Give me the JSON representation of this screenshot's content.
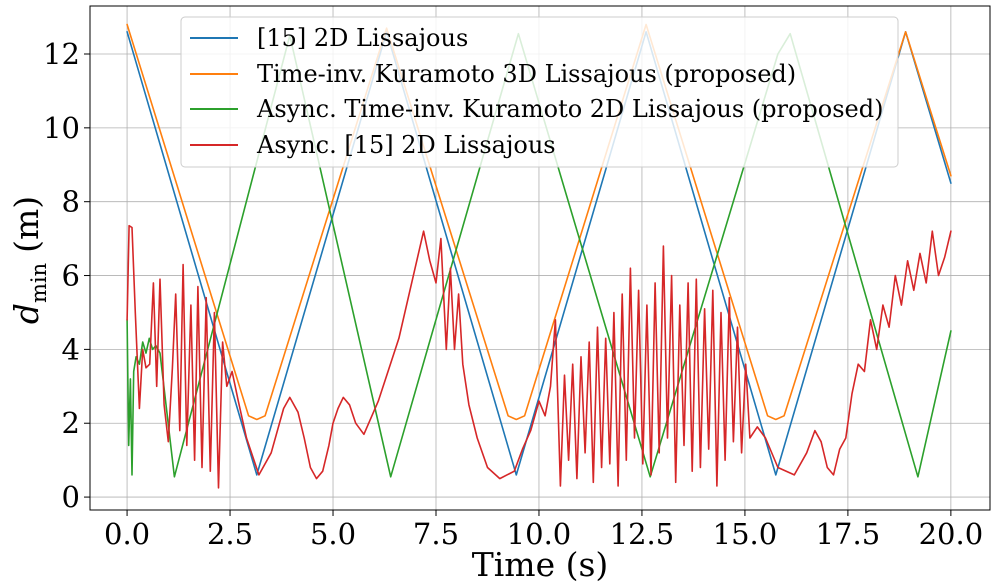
{
  "chart_data": {
    "type": "line",
    "title": "",
    "xlabel": "Time (s)",
    "ylabel_main": "d",
    "ylabel_sub": "min",
    "ylabel_unit": "(m)",
    "xlim": [
      -0.9,
      20.95
    ],
    "ylim": [
      -0.35,
      13.3
    ],
    "xticks": [
      0.0,
      2.5,
      5.0,
      7.5,
      10.0,
      12.5,
      15.0,
      17.5,
      20.0
    ],
    "xtick_labels": [
      "0.0",
      "2.5",
      "5.0",
      "7.5",
      "10.0",
      "12.5",
      "15.0",
      "17.5",
      "20.0"
    ],
    "yticks": [
      0,
      2,
      4,
      6,
      8,
      10,
      12
    ],
    "ytick_labels": [
      "0",
      "2",
      "4",
      "6",
      "8",
      "10",
      "12"
    ],
    "grid": true,
    "legend_position": "top-center",
    "series": [
      {
        "name": "[15] 2D Lissajous",
        "color": "#1f77b4",
        "x": [
          0.0,
          3.15,
          6.3,
          9.45,
          12.6,
          15.75,
          18.9,
          20.0
        ],
        "y": [
          12.6,
          0.6,
          12.6,
          0.6,
          12.6,
          0.6,
          12.6,
          8.5
        ]
      },
      {
        "name": "Time-inv. Kuramoto 3D Lissajous (proposed)",
        "color": "#ff7f0e",
        "x": [
          0.0,
          2.95,
          3.15,
          3.35,
          6.3,
          9.25,
          9.45,
          9.65,
          12.6,
          15.55,
          15.75,
          15.95,
          18.9,
          20.0
        ],
        "y": [
          12.8,
          2.2,
          2.1,
          2.2,
          12.7,
          2.2,
          2.1,
          2.2,
          12.8,
          2.2,
          2.1,
          2.2,
          12.6,
          8.7
        ]
      },
      {
        "name": "Async. Time-inv. Kuramoto 2D Lissajous (proposed)",
        "color": "#2ca02c",
        "x": [
          0.0,
          0.04,
          0.08,
          0.12,
          0.16,
          0.22,
          0.3,
          0.38,
          0.46,
          0.54,
          0.62,
          0.7,
          0.8,
          1.15,
          3.95,
          6.4,
          9.5,
          12.7,
          15.8,
          16.1,
          19.2,
          20.0
        ],
        "y": [
          4.8,
          1.4,
          3.2,
          0.6,
          3.4,
          3.8,
          3.6,
          4.2,
          3.9,
          4.3,
          4.0,
          4.1,
          3.9,
          0.55,
          12.5,
          0.55,
          12.55,
          0.55,
          12.0,
          12.55,
          0.55,
          4.5
        ]
      },
      {
        "name": "Async. [15] 2D Lissajous",
        "color": "#d62728",
        "x": [
          0.0,
          0.05,
          0.12,
          0.2,
          0.3,
          0.38,
          0.46,
          0.55,
          0.64,
          0.72,
          0.8,
          0.9,
          1.0,
          1.1,
          1.18,
          1.28,
          1.36,
          1.45,
          1.55,
          1.64,
          1.72,
          1.82,
          1.92,
          2.02,
          2.12,
          2.22,
          2.32,
          2.42,
          2.55,
          2.7,
          2.9,
          3.2,
          3.5,
          3.8,
          3.95,
          4.15,
          4.3,
          4.45,
          4.6,
          4.75,
          4.9,
          5.0,
          5.12,
          5.25,
          5.4,
          5.55,
          5.75,
          6.1,
          6.6,
          7.2,
          7.35,
          7.5,
          7.62,
          7.75,
          7.85,
          7.95,
          8.05,
          8.15,
          8.3,
          8.5,
          8.75,
          9.05,
          9.4,
          9.6,
          9.8,
          10.0,
          10.15,
          10.28,
          10.4,
          10.52,
          10.62,
          10.72,
          10.82,
          10.92,
          11.02,
          11.12,
          11.22,
          11.32,
          11.42,
          11.52,
          11.62,
          11.72,
          11.82,
          11.92,
          12.02,
          12.12,
          12.22,
          12.32,
          12.42,
          12.52,
          12.62,
          12.72,
          12.82,
          12.92,
          13.02,
          13.12,
          13.22,
          13.32,
          13.42,
          13.52,
          13.62,
          13.72,
          13.82,
          13.92,
          14.02,
          14.12,
          14.22,
          14.32,
          14.42,
          14.52,
          14.62,
          14.72,
          14.82,
          14.92,
          15.02,
          15.12,
          15.3,
          15.5,
          15.8,
          16.2,
          16.5,
          16.7,
          16.85,
          17.0,
          17.15,
          17.3,
          17.45,
          17.6,
          17.75,
          17.9,
          18.05,
          18.2,
          18.35,
          18.5,
          18.65,
          18.8,
          18.95,
          19.1,
          19.25,
          19.4,
          19.55,
          19.7,
          19.85,
          20.0
        ],
        "y": [
          4.8,
          7.35,
          7.3,
          5.0,
          2.4,
          4.0,
          3.5,
          3.6,
          5.8,
          3.0,
          5.9,
          2.5,
          1.5,
          3.5,
          5.5,
          1.8,
          6.3,
          1.4,
          5.2,
          1.0,
          5.7,
          0.8,
          5.4,
          0.7,
          5.0,
          0.25,
          4.2,
          3.0,
          3.4,
          2.6,
          1.6,
          0.6,
          1.2,
          2.4,
          2.7,
          2.3,
          1.6,
          0.8,
          0.5,
          0.7,
          1.4,
          2.0,
          2.4,
          2.7,
          2.5,
          2.0,
          1.7,
          2.6,
          4.3,
          7.2,
          6.4,
          5.8,
          7.0,
          4.0,
          6.2,
          4.0,
          5.5,
          3.6,
          2.5,
          1.6,
          0.8,
          0.5,
          0.7,
          1.3,
          1.8,
          2.6,
          2.2,
          3.0,
          4.8,
          0.3,
          3.3,
          1.0,
          3.6,
          0.5,
          3.8,
          1.2,
          4.2,
          0.4,
          4.6,
          0.8,
          4.3,
          0.9,
          5.0,
          0.3,
          5.5,
          1.0,
          6.2,
          1.6,
          5.6,
          0.9,
          5.2,
          0.6,
          5.8,
          1.2,
          6.8,
          1.6,
          6.0,
          0.4,
          5.2,
          1.4,
          5.8,
          0.7,
          5.9,
          0.8,
          5.1,
          1.3,
          5.6,
          0.3,
          5.0,
          1.0,
          5.4,
          1.5,
          4.6,
          1.2,
          3.6,
          1.6,
          1.9,
          1.6,
          0.8,
          0.6,
          1.2,
          1.8,
          1.5,
          0.8,
          0.6,
          1.3,
          1.6,
          2.8,
          3.6,
          3.4,
          4.8,
          4.0,
          5.2,
          4.6,
          6.0,
          5.2,
          6.4,
          5.6,
          6.6,
          5.8,
          7.2,
          6.0,
          6.5,
          7.2
        ]
      }
    ]
  }
}
